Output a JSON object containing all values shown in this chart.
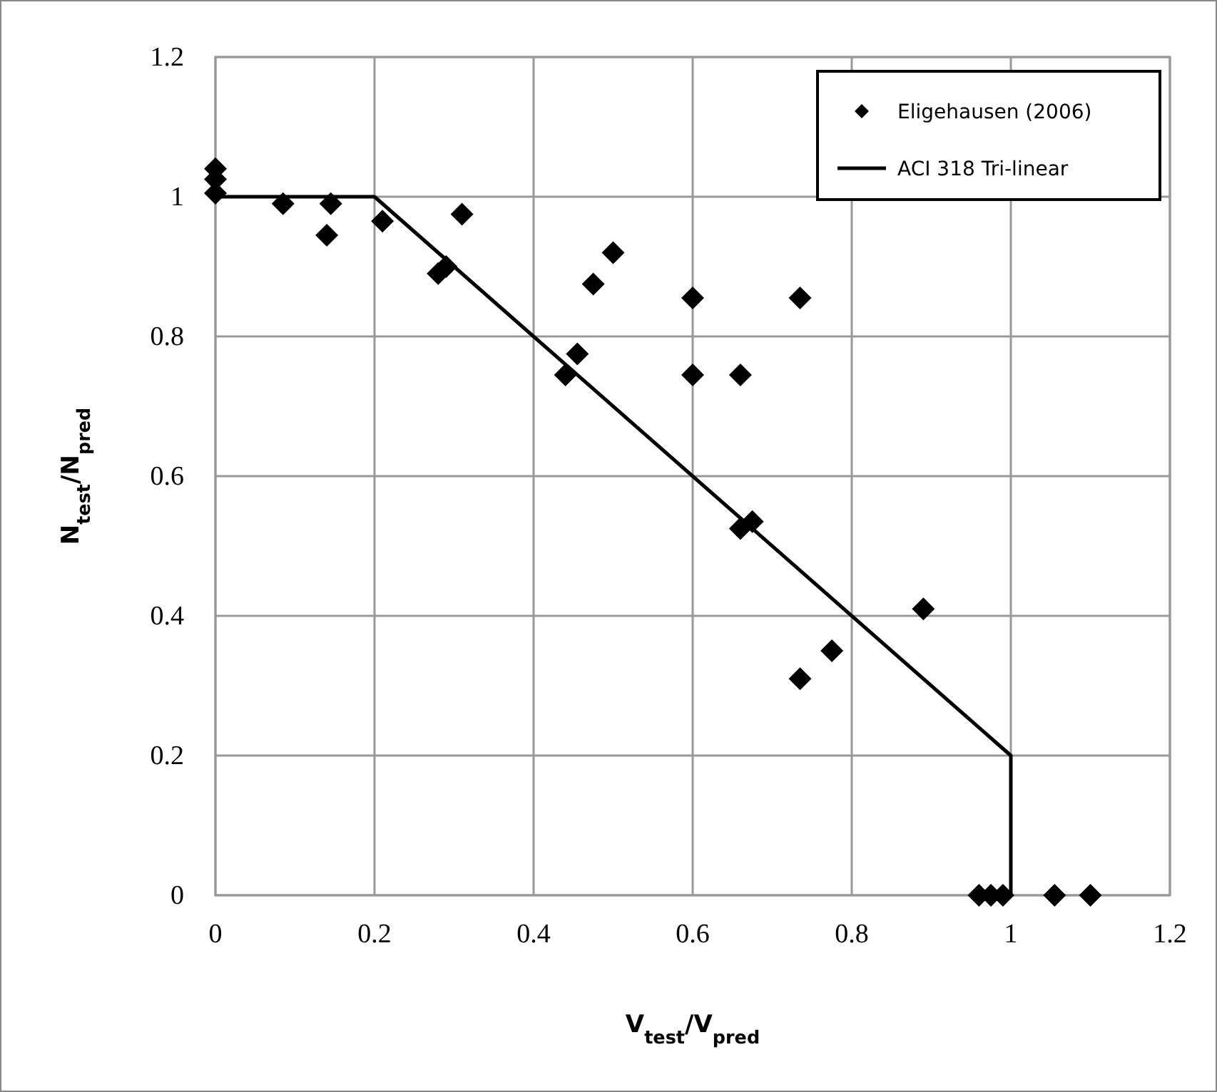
{
  "chart_data": {
    "type": "scatter",
    "xlabel": "V$_{test}$/V$_{pred}$",
    "ylabel": "N$_{test}$/N$_{pred}$",
    "xlim": [
      0,
      1.2
    ],
    "ylim": [
      0,
      1.2
    ],
    "xticks": [
      0,
      0.2,
      0.4,
      0.6,
      0.8,
      1,
      1.2
    ],
    "yticks": [
      0,
      0.2,
      0.4,
      0.6,
      0.8,
      1,
      1.2
    ],
    "grid": true,
    "legend": "top right",
    "series": [
      {
        "name": "Eligehausen (2006)",
        "marker": "diamond",
        "color": "#000000",
        "x": [
          0,
          0,
          0,
          0.085,
          0.14,
          0.145,
          0.21,
          0.28,
          0.29,
          0.31,
          0.44,
          0.455,
          0.475,
          0.5,
          0.6,
          0.6,
          0.66,
          0.66,
          0.675,
          0.735,
          0.735,
          0.775,
          0.89,
          0.96,
          0.975,
          0.99,
          1.055,
          1.1
        ],
        "values": [
          1.04,
          1.025,
          1.005,
          0.99,
          0.945,
          0.99,
          0.965,
          0.89,
          0.9,
          0.975,
          0.745,
          0.775,
          0.875,
          0.92,
          0.855,
          0.745,
          0.745,
          0.525,
          0.535,
          0.855,
          0.31,
          0.35,
          0.41,
          0,
          0,
          0,
          0,
          0
        ]
      },
      {
        "name": "ACI 318 Tri-linear",
        "type": "line",
        "color": "#000000",
        "x": [
          0,
          0.2,
          1,
          1
        ],
        "values": [
          1,
          1,
          0.2,
          0
        ],
        "line_style": "solid",
        "marker": "none"
      }
    ]
  }
}
